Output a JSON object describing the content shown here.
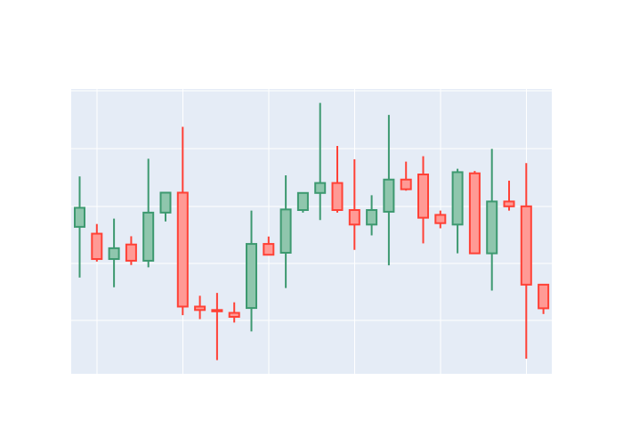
{
  "chart_data": {
    "type": "candlestick",
    "title": "",
    "xlabel": "",
    "ylabel": "",
    "ylim": [
      0,
      100
    ],
    "grid": true,
    "legend": "none",
    "colors": {
      "increasing_line": "#3d9970",
      "increasing_fill": "#8fc6ad",
      "decreasing_line": "#ff4136",
      "decreasing_fill": "#ff9a95",
      "plot_bg": "#e5ecf6",
      "grid": "#ffffff",
      "page_bg": "#ffffff"
    },
    "candles": [
      {
        "open": 51.6,
        "high": 69.3,
        "low": 33.8,
        "close": 58.3
      },
      {
        "open": 49.2,
        "high": 52.6,
        "low": 39.4,
        "close": 40.3
      },
      {
        "open": 40.3,
        "high": 54.5,
        "low": 30.4,
        "close": 44.1
      },
      {
        "open": 45.4,
        "high": 48.3,
        "low": 38.2,
        "close": 39.7
      },
      {
        "open": 39.7,
        "high": 75.5,
        "low": 37.4,
        "close": 56.6
      },
      {
        "open": 56.6,
        "high": 63.6,
        "low": 53.5,
        "close": 63.6
      },
      {
        "open": 63.6,
        "high": 86.7,
        "low": 20.6,
        "close": 23.6
      },
      {
        "open": 23.6,
        "high": 27.4,
        "low": 19.2,
        "close": 22.4
      },
      {
        "open": 22.4,
        "high": 28.4,
        "low": 4.8,
        "close": 22.0
      },
      {
        "open": 21.4,
        "high": 25.1,
        "low": 18.0,
        "close": 20.0
      },
      {
        "open": 23.1,
        "high": 57.3,
        "low": 14.9,
        "close": 45.6
      },
      {
        "open": 45.6,
        "high": 48.2,
        "low": 41.6,
        "close": 41.8
      },
      {
        "open": 42.5,
        "high": 69.7,
        "low": 30.1,
        "close": 57.7
      },
      {
        "open": 57.5,
        "high": 63.5,
        "low": 56.6,
        "close": 63.5
      },
      {
        "open": 63.5,
        "high": 95.1,
        "low": 54.0,
        "close": 67.0
      },
      {
        "open": 67.0,
        "high": 80.0,
        "low": 56.6,
        "close": 57.5
      },
      {
        "open": 57.5,
        "high": 75.3,
        "low": 43.5,
        "close": 52.4
      },
      {
        "open": 52.4,
        "high": 62.7,
        "low": 48.6,
        "close": 57.5
      },
      {
        "open": 56.9,
        "high": 90.9,
        "low": 38.1,
        "close": 68.2
      },
      {
        "open": 68.2,
        "high": 74.5,
        "low": 64.3,
        "close": 64.8
      },
      {
        "open": 70.0,
        "high": 76.4,
        "low": 45.8,
        "close": 54.8
      },
      {
        "open": 55.8,
        "high": 57.3,
        "low": 51.1,
        "close": 52.9
      },
      {
        "open": 52.4,
        "high": 72.0,
        "low": 42.3,
        "close": 70.8
      },
      {
        "open": 70.4,
        "high": 71.2,
        "low": 42.3,
        "close": 42.3
      },
      {
        "open": 42.3,
        "high": 79.0,
        "low": 29.2,
        "close": 60.5
      },
      {
        "open": 60.5,
        "high": 67.8,
        "low": 57.3,
        "close": 58.8
      },
      {
        "open": 58.8,
        "high": 74.0,
        "low": 5.3,
        "close": 31.3
      },
      {
        "open": 31.3,
        "high": 31.3,
        "low": 21.0,
        "close": 23.0
      }
    ]
  }
}
